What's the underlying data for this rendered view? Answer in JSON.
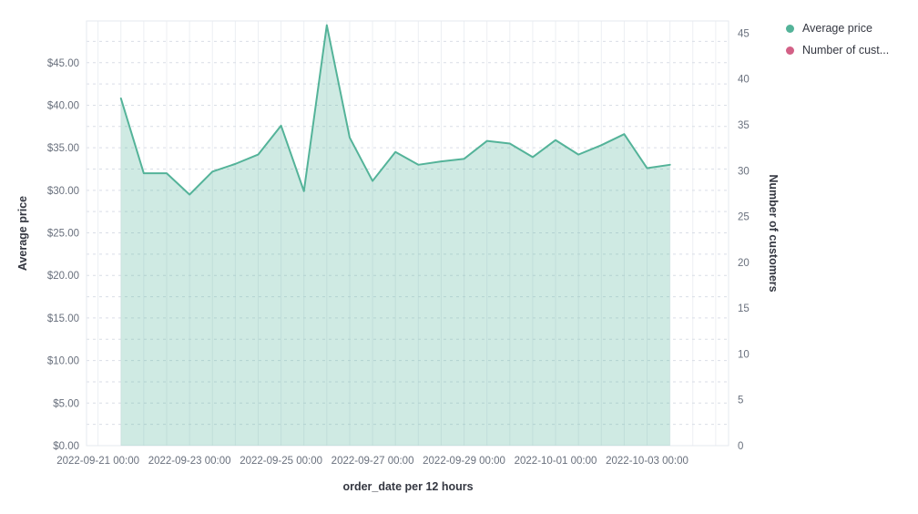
{
  "chart_data": {
    "type": "area",
    "title": "",
    "legend_position": "right",
    "grid": {
      "horizontal": "dashed",
      "vertical": "solid"
    },
    "x_axis": {
      "title": "order_date per 12 hours",
      "interval": "12h",
      "tick_labels": [
        "2022-09-21 00:00",
        "2022-09-23 00:00",
        "2022-09-25 00:00",
        "2022-09-27 00:00",
        "2022-09-29 00:00",
        "2022-10-01 00:00",
        "2022-10-03 00:00"
      ]
    },
    "left_axis": {
      "title": "Average price",
      "tick_labels": [
        "$0.00",
        "$5.00",
        "$10.00",
        "$15.00",
        "$20.00",
        "$25.00",
        "$30.00",
        "$35.00",
        "$40.00",
        "$45.00"
      ],
      "tick_values": [
        0,
        5,
        10,
        15,
        20,
        25,
        30,
        35,
        40,
        45
      ],
      "range": [
        0,
        49.9
      ]
    },
    "right_axis": {
      "title": "Number of customers",
      "tick_labels": [
        "0",
        "5",
        "10",
        "15",
        "20",
        "25",
        "30",
        "35",
        "40",
        "45"
      ],
      "tick_values": [
        0,
        5,
        10,
        15,
        20,
        25,
        30,
        35,
        40,
        45
      ],
      "range": [
        0,
        46.3
      ]
    },
    "x": [
      "2022-09-21 12:00",
      "2022-09-22 00:00",
      "2022-09-22 12:00",
      "2022-09-23 00:00",
      "2022-09-23 12:00",
      "2022-09-24 00:00",
      "2022-09-24 12:00",
      "2022-09-25 00:00",
      "2022-09-25 12:00",
      "2022-09-26 00:00",
      "2022-09-26 12:00",
      "2022-09-27 00:00",
      "2022-09-27 12:00",
      "2022-09-28 00:00",
      "2022-09-28 12:00",
      "2022-09-29 00:00",
      "2022-09-29 12:00",
      "2022-09-30 00:00",
      "2022-09-30 12:00",
      "2022-10-01 00:00",
      "2022-10-01 12:00",
      "2022-10-02 00:00",
      "2022-10-02 12:00",
      "2022-10-03 00:00",
      "2022-10-03 12:00"
    ],
    "series": [
      {
        "name": "Average price",
        "axis": "left",
        "color": "#54B399",
        "fill_opacity": 0.28,
        "values": [
          40.8,
          32.0,
          32.0,
          29.5,
          32.2,
          33.1,
          34.2,
          37.6,
          29.9,
          49.4,
          36.2,
          31.1,
          34.5,
          33.0,
          33.4,
          33.7,
          35.8,
          35.5,
          33.9,
          35.9,
          34.2,
          35.3,
          36.6,
          32.6,
          33.0
        ]
      },
      {
        "name": "Number of customers",
        "axis": "right",
        "color": "#D36086",
        "values": []
      }
    ]
  },
  "legend": {
    "items": [
      {
        "label": "Average price",
        "color": "#54B399"
      },
      {
        "label": "Number of cust...",
        "color": "#D36086"
      }
    ]
  },
  "colors": {
    "line": "#54B399",
    "pink": "#D36086",
    "tick_text": "#69707D",
    "title_text": "#343741",
    "grid_dashed": "#d9dee6",
    "grid_solid": "#eceff3",
    "border": "#e6e9ef"
  }
}
